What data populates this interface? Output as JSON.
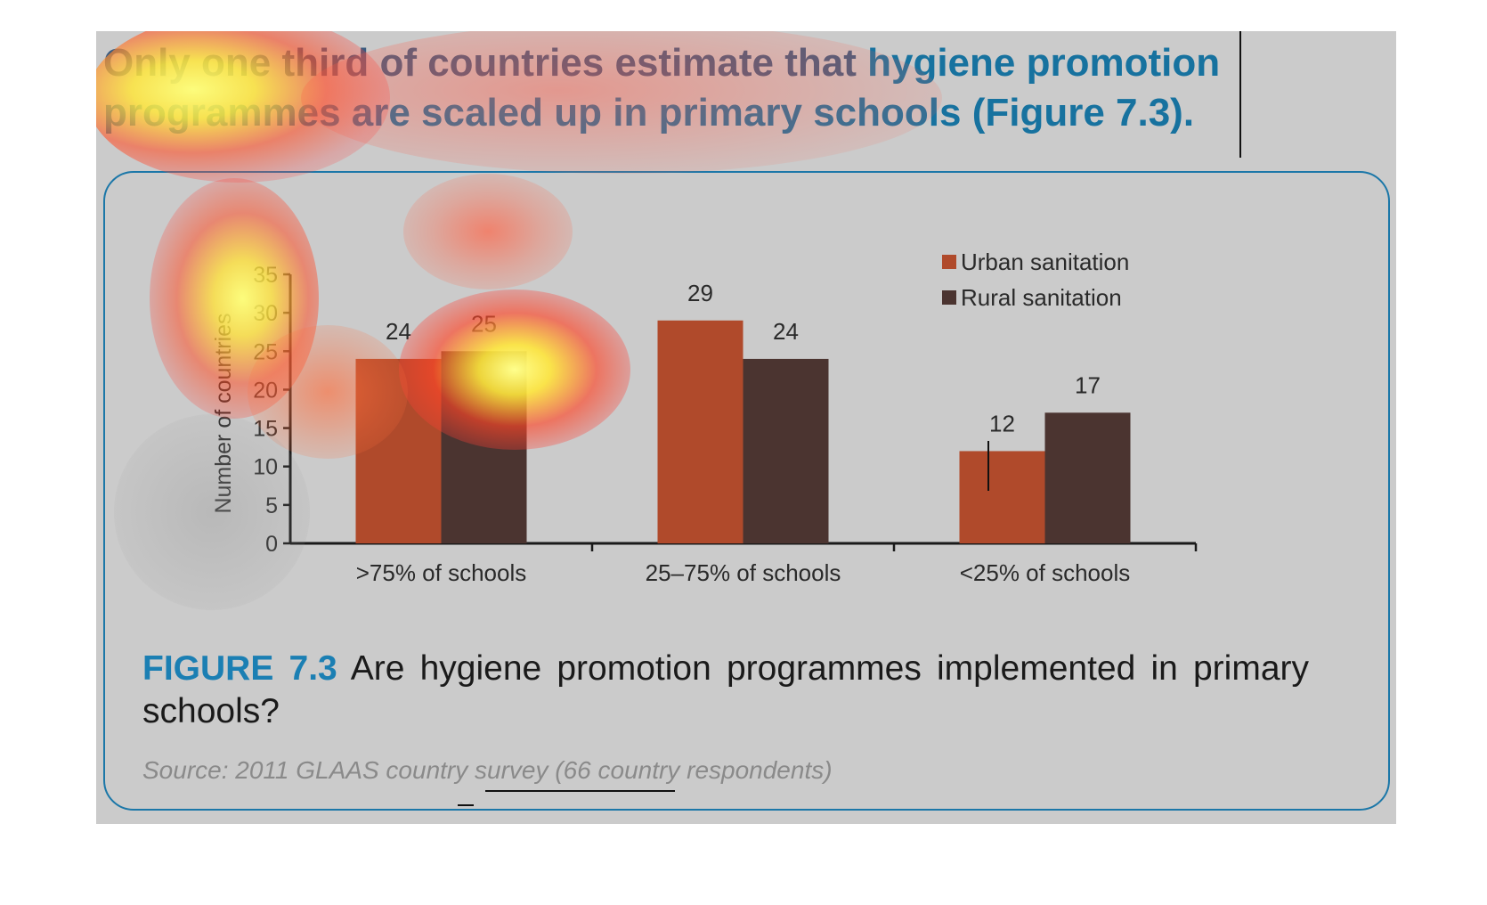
{
  "headline": {
    "part1": "Only one third of countries estimate that ",
    "part2": "hygiene promotion programmes are scaled up in primary schools (Figure 7.3)."
  },
  "figure": {
    "label": "FIGURE 7.3",
    "caption": " Are hygiene promotion programmes implemented in primary schools?",
    "source": "Source: 2011 GLAAS country survey (66 country respondents)"
  },
  "chart_data": {
    "type": "bar",
    "categories": [
      ">75% of schools",
      "25–75% of schools",
      "<25% of schools"
    ],
    "series": [
      {
        "name": "Urban sanitation",
        "values": [
          24,
          29,
          12
        ],
        "color": "#b04a2b"
      },
      {
        "name": "Rural sanitation",
        "values": [
          25,
          24,
          17
        ],
        "color": "#4b3430"
      }
    ],
    "ylabel": "Number of countries",
    "ylim": [
      0,
      35
    ],
    "yticks": [
      0,
      5,
      10,
      15,
      20,
      25,
      30,
      35
    ],
    "legend_position": "top-right",
    "grid": false
  },
  "colors": {
    "headline_blue": "#17729f",
    "frame_blue": "#1b77a8",
    "panel_gray": "#cbcbcb"
  }
}
